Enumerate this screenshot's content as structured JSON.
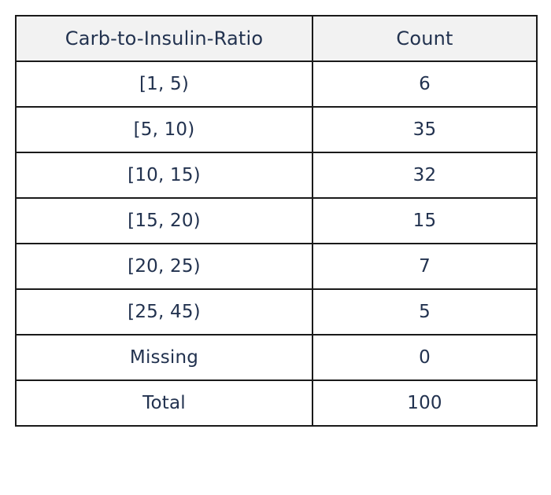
{
  "table": {
    "headers": [
      "Carb-to-Insulin-Ratio",
      "Count"
    ],
    "rows": [
      [
        "[1, 5)",
        "6"
      ],
      [
        "[5, 10)",
        "35"
      ],
      [
        "[10, 15)",
        "32"
      ],
      [
        "[15, 20)",
        "15"
      ],
      [
        "[20, 25)",
        "7"
      ],
      [
        "[25, 45)",
        "5"
      ],
      [
        "Missing",
        "0"
      ],
      [
        "Total",
        "100"
      ]
    ]
  },
  "colors": {
    "header_background": "#f2f2f2",
    "text": "#22324f",
    "border": "#1a1a1a"
  }
}
